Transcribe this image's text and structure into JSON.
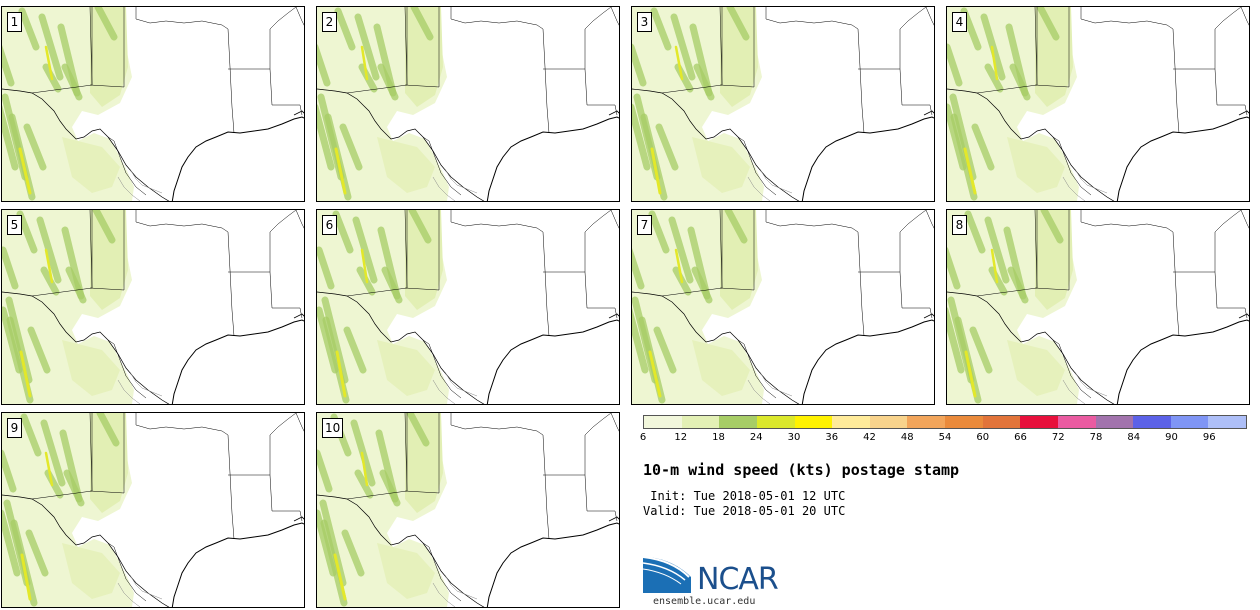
{
  "panels": [
    {
      "member": "1"
    },
    {
      "member": "2"
    },
    {
      "member": "3"
    },
    {
      "member": "4"
    },
    {
      "member": "5"
    },
    {
      "member": "6"
    },
    {
      "member": "7"
    },
    {
      "member": "8"
    },
    {
      "member": "9"
    },
    {
      "member": "10"
    }
  ],
  "colorbar": {
    "colors": [
      "#f2f7dc",
      "#e3f0b5",
      "#a7cd66",
      "#dbe82c",
      "#fff200",
      "#ffeb9a",
      "#f8d38c",
      "#f2a55b",
      "#ea8a3b",
      "#e2743a",
      "#e8103c",
      "#ea5ba1",
      "#a273ad",
      "#5c62e8",
      "#7f95f5",
      "#aebff8"
    ],
    "tick_labels": [
      "6",
      "12",
      "18",
      "24",
      "30",
      "36",
      "42",
      "48",
      "54",
      "60",
      "66",
      "72",
      "78",
      "84",
      "90",
      "96"
    ]
  },
  "title": "10-m wind speed (kts) postage stamp",
  "init_line": " Init: Tue 2018-05-01 12 UTC",
  "valid_line": "Valid: Tue 2018-05-01 20 UTC",
  "logo": {
    "name": "NCAR",
    "url": "ensemble.ucar.edu",
    "colors": {
      "blue": "#1b6fb5",
      "dark": "#1b4f8c"
    }
  }
}
